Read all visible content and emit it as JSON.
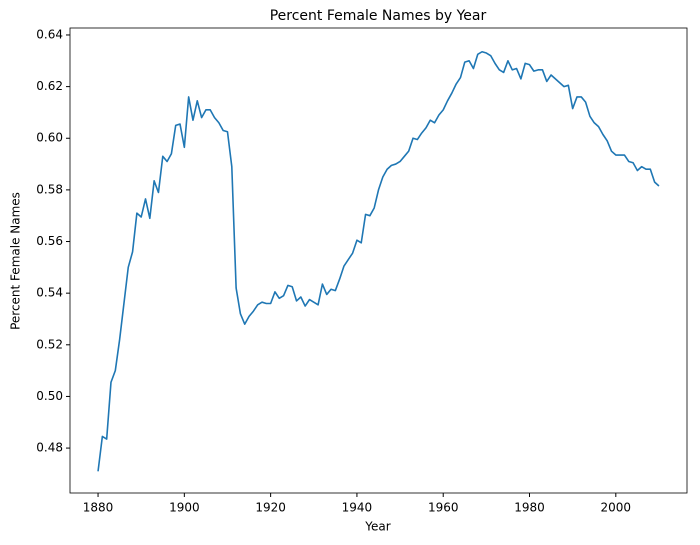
{
  "chart_data": {
    "type": "line",
    "title": "Percent Female Names by Year",
    "xlabel": "Year",
    "ylabel": "Percent Female Names",
    "x": [
      1880,
      1881,
      1882,
      1883,
      1884,
      1885,
      1886,
      1887,
      1888,
      1889,
      1890,
      1891,
      1892,
      1893,
      1894,
      1895,
      1896,
      1897,
      1898,
      1899,
      1900,
      1901,
      1902,
      1903,
      1904,
      1905,
      1906,
      1907,
      1908,
      1909,
      1910,
      1911,
      1912,
      1913,
      1914,
      1915,
      1916,
      1917,
      1918,
      1919,
      1920,
      1921,
      1922,
      1923,
      1924,
      1925,
      1926,
      1927,
      1928,
      1929,
      1930,
      1931,
      1932,
      1933,
      1934,
      1935,
      1936,
      1937,
      1938,
      1939,
      1940,
      1941,
      1942,
      1943,
      1944,
      1945,
      1946,
      1947,
      1948,
      1949,
      1950,
      1951,
      1952,
      1953,
      1954,
      1955,
      1956,
      1957,
      1958,
      1959,
      1960,
      1961,
      1962,
      1963,
      1964,
      1965,
      1966,
      1967,
      1968,
      1969,
      1970,
      1971,
      1972,
      1973,
      1974,
      1975,
      1976,
      1977,
      1978,
      1979,
      1980,
      1981,
      1982,
      1983,
      1984,
      1985,
      1986,
      1987,
      1988,
      1989,
      1990,
      1991,
      1992,
      1993,
      1994,
      1995,
      1996,
      1997,
      1998,
      1999,
      2000,
      2001,
      2002,
      2003,
      2004,
      2005,
      2006,
      2007,
      2008,
      2009,
      2010
    ],
    "series": [
      {
        "color": "#1f77b4",
        "values": [
          0.471,
          0.4845,
          0.4835,
          0.5055,
          0.51,
          0.522,
          0.536,
          0.55,
          0.556,
          0.571,
          0.5695,
          0.5765,
          0.569,
          0.5835,
          0.579,
          0.593,
          0.591,
          0.594,
          0.605,
          0.6055,
          0.5965,
          0.616,
          0.607,
          0.6145,
          0.608,
          0.611,
          0.611,
          0.608,
          0.606,
          0.603,
          0.6025,
          0.589,
          0.542,
          0.532,
          0.528,
          0.531,
          0.533,
          0.5355,
          0.5365,
          0.536,
          0.536,
          0.5405,
          0.538,
          0.539,
          0.543,
          0.5425,
          0.537,
          0.5385,
          0.535,
          0.5375,
          0.5365,
          0.5355,
          0.5435,
          0.5395,
          0.5415,
          0.541,
          0.5455,
          0.5505,
          0.553,
          0.5555,
          0.5605,
          0.5595,
          0.5705,
          0.57,
          0.573,
          0.58,
          0.585,
          0.588,
          0.5895,
          0.59,
          0.591,
          0.593,
          0.595,
          0.6,
          0.5995,
          0.602,
          0.604,
          0.607,
          0.606,
          0.609,
          0.611,
          0.6145,
          0.6175,
          0.621,
          0.6235,
          0.6295,
          0.63,
          0.627,
          0.6325,
          0.6335,
          0.633,
          0.632,
          0.629,
          0.6265,
          0.6255,
          0.63,
          0.6265,
          0.627,
          0.623,
          0.629,
          0.6285,
          0.626,
          0.6265,
          0.6265,
          0.622,
          0.6245,
          0.623,
          0.6215,
          0.62,
          0.6205,
          0.6115,
          0.616,
          0.616,
          0.614,
          0.6085,
          0.606,
          0.6045,
          0.6015,
          0.599,
          0.595,
          0.5935,
          0.5935,
          0.5935,
          0.591,
          0.5905,
          0.5875,
          0.589,
          0.588,
          0.588,
          0.583,
          0.5815
        ]
      }
    ],
    "xlim": [
      1873.5,
      2016.5
    ],
    "xticks": [
      1880,
      1900,
      1920,
      1940,
      1960,
      1980,
      2000
    ],
    "ylim": [
      0.4626,
      0.6427
    ],
    "yticks": [
      0.48,
      {
        "value": 0.5,
        "label": "0.50"
      },
      0.52,
      0.54,
      0.56,
      0.58,
      {
        "value": 0.6,
        "label": "0.60"
      },
      0.62,
      0.64
    ]
  }
}
